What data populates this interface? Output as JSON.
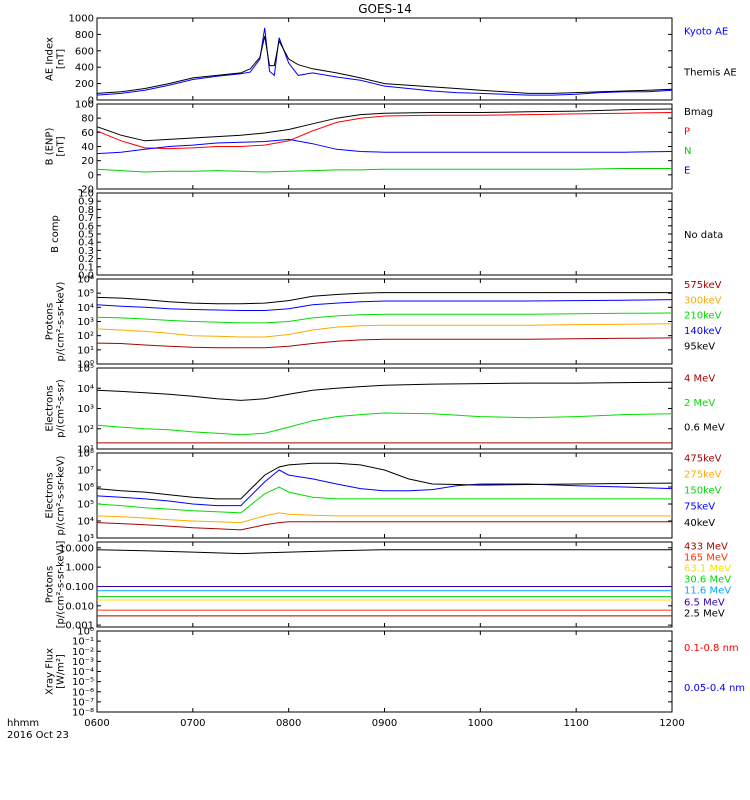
{
  "title": "GOES-14",
  "time_axis": {
    "ticks": [
      "0600",
      "0700",
      "0800",
      "0900",
      "1000",
      "1100",
      "1200"
    ],
    "label": "hhmm",
    "date": "2016 Oct 23"
  },
  "chart_data": [
    {
      "id": "ae",
      "type": "line",
      "ylabel": "AE Index\n[nT]",
      "scale": "linear",
      "ylim": [
        0,
        1000
      ],
      "yticks": [
        0,
        200,
        400,
        600,
        800,
        1000
      ],
      "ytick_labels": [
        "0",
        "200",
        "400",
        "600",
        "800",
        "1000"
      ],
      "x": [
        6.0,
        6.25,
        6.5,
        6.75,
        7.0,
        7.25,
        7.5,
        7.6,
        7.7,
        7.75,
        7.8,
        7.85,
        7.9,
        8.0,
        8.1,
        8.25,
        8.5,
        8.75,
        9.0,
        9.25,
        9.5,
        9.75,
        10.0,
        10.25,
        10.5,
        10.75,
        11.0,
        11.25,
        11.5,
        11.75,
        12.0
      ],
      "series": [
        {
          "name": "Kyoto AE",
          "color": "#0000ff",
          "label_pos": 0.15,
          "values": [
            60,
            80,
            120,
            180,
            250,
            290,
            320,
            340,
            500,
            880,
            350,
            300,
            760,
            450,
            300,
            330,
            280,
            240,
            170,
            140,
            110,
            90,
            80,
            70,
            60,
            60,
            70,
            90,
            100,
            100,
            120
          ]
        },
        {
          "name": "Themis AE",
          "color": "#000000",
          "label_pos": 0.65,
          "values": [
            80,
            100,
            140,
            200,
            270,
            300,
            330,
            380,
            520,
            780,
            420,
            420,
            720,
            500,
            430,
            380,
            330,
            270,
            200,
            180,
            160,
            140,
            120,
            100,
            80,
            80,
            90,
            100,
            110,
            120,
            130
          ]
        }
      ]
    },
    {
      "id": "b_enp",
      "type": "line",
      "ylabel": "B (ENP)\n[nT]",
      "scale": "linear",
      "ylim": [
        -20,
        100
      ],
      "yticks": [
        -20,
        0,
        20,
        40,
        60,
        80,
        100
      ],
      "ytick_labels": [
        "-20",
        "0",
        "20",
        "40",
        "60",
        "80",
        "100"
      ],
      "x": [
        6.0,
        6.25,
        6.5,
        6.75,
        7.0,
        7.25,
        7.5,
        7.75,
        8.0,
        8.25,
        8.5,
        8.75,
        9.0,
        9.5,
        10.0,
        10.5,
        11.0,
        11.5,
        12.0
      ],
      "series": [
        {
          "name": "Bmag",
          "color": "#000000",
          "label_pos": 0.08,
          "values": [
            68,
            56,
            48,
            50,
            52,
            54,
            56,
            59,
            64,
            72,
            80,
            85,
            87,
            88,
            88,
            89,
            90,
            92,
            93
          ]
        },
        {
          "name": "P",
          "color": "#ff0000",
          "label_pos": 0.31,
          "values": [
            62,
            48,
            38,
            37,
            38,
            40,
            40,
            42,
            48,
            62,
            74,
            80,
            83,
            84,
            84,
            85,
            86,
            87,
            88
          ]
        },
        {
          "name": "N",
          "color": "#00d000",
          "label_pos": 0.54,
          "values": [
            8,
            6,
            4,
            5,
            5,
            6,
            5,
            4,
            5,
            6,
            7,
            7,
            8,
            8,
            8,
            8,
            8,
            9,
            9
          ]
        },
        {
          "name": "E",
          "color": "#0000ff",
          "label_pos": 0.77,
          "values": [
            30,
            32,
            36,
            40,
            42,
            45,
            46,
            47,
            50,
            44,
            36,
            33,
            32,
            32,
            32,
            32,
            32,
            32,
            33
          ]
        }
      ]
    },
    {
      "id": "bcomp",
      "type": "line",
      "ylabel": "B comp",
      "scale": "linear",
      "ylim": [
        0,
        1
      ],
      "yticks": [
        0,
        0.1,
        0.2,
        0.3,
        0.4,
        0.5,
        0.6,
        0.7,
        0.8,
        0.9,
        1.0
      ],
      "ytick_labels": [
        "0.0",
        "0.1",
        "0.2",
        "0.3",
        "0.4",
        "0.5",
        "0.6",
        "0.7",
        "0.8",
        "0.9",
        "1.0"
      ],
      "x": [],
      "series": [],
      "note": "No data",
      "note_color": "#000000"
    },
    {
      "id": "protons_low",
      "type": "line",
      "ylabel": "Protons\np/(cm²-s-sr-keV)",
      "scale": "log",
      "ylim": [
        1,
        1000000
      ],
      "yticks": [
        1,
        10,
        100,
        1000,
        10000,
        100000,
        1000000
      ],
      "ytick_labels": [
        "10⁰",
        "10¹",
        "10²",
        "10³",
        "10⁴",
        "10⁵",
        "10⁶"
      ],
      "x": [
        6.0,
        6.25,
        6.5,
        6.75,
        7.0,
        7.25,
        7.5,
        7.75,
        8.0,
        8.25,
        8.5,
        8.75,
        9.0,
        9.5,
        10.0,
        10.5,
        11.0,
        11.5,
        12.0
      ],
      "series": [
        {
          "name": "575keV",
          "color": "#aa0000",
          "label_pos": 0.06,
          "values": [
            30,
            28,
            22,
            18,
            15,
            14,
            14,
            14,
            18,
            28,
            40,
            50,
            55,
            55,
            55,
            55,
            60,
            65,
            70
          ]
        },
        {
          "name": "300keV",
          "color": "#ffaa00",
          "label_pos": 0.24,
          "values": [
            300,
            250,
            200,
            150,
            100,
            90,
            80,
            80,
            120,
            250,
            400,
            500,
            550,
            550,
            550,
            550,
            600,
            650,
            700
          ]
        },
        {
          "name": "210keV",
          "color": "#00dd00",
          "label_pos": 0.42,
          "values": [
            2000,
            1800,
            1500,
            1200,
            1000,
            900,
            800,
            800,
            1000,
            1800,
            2500,
            3000,
            3200,
            3200,
            3200,
            3200,
            3500,
            3800,
            4000
          ]
        },
        {
          "name": "140keV",
          "color": "#0000ff",
          "label_pos": 0.6,
          "values": [
            15000,
            12000,
            10000,
            8000,
            7000,
            6500,
            6000,
            6000,
            8000,
            15000,
            20000,
            25000,
            28000,
            28000,
            28000,
            28000,
            30000,
            32000,
            35000
          ]
        },
        {
          "name": "95keV",
          "color": "#000000",
          "label_pos": 0.78,
          "values": [
            50000,
            45000,
            35000,
            25000,
            20000,
            18000,
            18000,
            20000,
            30000,
            60000,
            80000,
            100000,
            110000,
            110000,
            110000,
            110000,
            110000,
            110000,
            110000
          ]
        }
      ]
    },
    {
      "id": "electrons_mev",
      "type": "line",
      "ylabel": "Electrons\np/(cm²-s-sr)",
      "scale": "log",
      "ylim": [
        10,
        100000
      ],
      "yticks": [
        10,
        100,
        1000,
        10000,
        100000
      ],
      "ytick_labels": [
        "10¹",
        "10²",
        "10³",
        "10⁴",
        "10⁵"
      ],
      "x": [
        6.0,
        6.25,
        6.5,
        6.75,
        7.0,
        7.25,
        7.5,
        7.75,
        8.0,
        8.25,
        8.5,
        8.75,
        9.0,
        9.5,
        10.0,
        10.5,
        11.0,
        11.5,
        12.0
      ],
      "series": [
        {
          "name": "4 MeV",
          "color": "#aa0000",
          "label_pos": 0.12,
          "values": [
            20,
            20,
            20,
            20,
            20,
            20,
            20,
            20,
            20,
            20,
            20,
            20,
            20,
            20,
            20,
            20,
            20,
            20,
            20
          ]
        },
        {
          "name": "2 MeV",
          "color": "#00dd00",
          "label_pos": 0.42,
          "values": [
            150,
            120,
            100,
            90,
            70,
            60,
            50,
            60,
            120,
            250,
            400,
            500,
            600,
            550,
            400,
            350,
            400,
            500,
            550
          ]
        },
        {
          "name": "0.6 MeV",
          "color": "#000000",
          "label_pos": 0.72,
          "values": [
            8000,
            7000,
            6000,
            5000,
            4000,
            3000,
            2500,
            3000,
            5000,
            8000,
            10000,
            12000,
            14000,
            16000,
            17000,
            18000,
            18000,
            19000,
            20000
          ]
        }
      ]
    },
    {
      "id": "electrons_kev",
      "type": "line",
      "ylabel": "Electrons\np/(cm²-s-sr-keV)",
      "scale": "log",
      "ylim": [
        1000,
        100000000
      ],
      "yticks": [
        1000,
        10000,
        100000,
        1000000,
        10000000,
        100000000
      ],
      "ytick_labels": [
        "10³",
        "10⁴",
        "10⁵",
        "10⁶",
        "10⁷",
        "10⁸"
      ],
      "x": [
        6.0,
        6.25,
        6.5,
        6.75,
        7.0,
        7.25,
        7.5,
        7.75,
        7.9,
        8.0,
        8.25,
        8.5,
        8.75,
        9.0,
        9.25,
        9.5,
        9.75,
        10.0,
        10.5,
        11.0,
        11.5,
        12.0
      ],
      "series": [
        {
          "name": "475keV",
          "color": "#aa0000",
          "label_pos": 0.05,
          "values": [
            8000,
            7000,
            6000,
            5000,
            4000,
            3500,
            3000,
            6000,
            8000,
            9000,
            9000,
            9000,
            9000,
            9000,
            9000,
            9000,
            9000,
            9000,
            9000,
            9000,
            9000,
            9000
          ]
        },
        {
          "name": "275keV",
          "color": "#ffaa00",
          "label_pos": 0.24,
          "values": [
            20000,
            18000,
            15000,
            12000,
            10000,
            9000,
            8000,
            20000,
            30000,
            25000,
            22000,
            20000,
            20000,
            20000,
            20000,
            20000,
            20000,
            20000,
            20000,
            20000,
            20000,
            20000
          ]
        },
        {
          "name": "150keV",
          "color": "#00dd00",
          "label_pos": 0.43,
          "values": [
            100000,
            80000,
            60000,
            50000,
            40000,
            35000,
            30000,
            400000,
            1000000,
            500000,
            250000,
            200000,
            200000,
            200000,
            200000,
            200000,
            200000,
            200000,
            200000,
            200000,
            200000,
            200000
          ]
        },
        {
          "name": "75keV",
          "color": "#0000ff",
          "label_pos": 0.62,
          "values": [
            300000,
            250000,
            200000,
            150000,
            100000,
            80000,
            80000,
            2000000,
            10000000,
            5000000,
            3000000,
            1500000,
            800000,
            600000,
            600000,
            700000,
            1200000,
            1500000,
            1500000,
            1200000,
            1000000,
            800000
          ]
        },
        {
          "name": "40keV",
          "color": "#000000",
          "label_pos": 0.81,
          "values": [
            800000,
            600000,
            500000,
            350000,
            250000,
            200000,
            200000,
            5000000,
            15000000,
            20000000,
            25000000,
            25000000,
            20000000,
            10000000,
            3000000,
            1500000,
            1400000,
            1300000,
            1400000,
            1500000,
            1600000,
            1700000
          ]
        }
      ]
    },
    {
      "id": "protons_high",
      "type": "line",
      "ylabel": "Protons\n[p/(cm²-s-sr-keV)]",
      "scale": "log",
      "ylim": [
        0.0008,
        20
      ],
      "yticks": [
        0.001,
        0.01,
        0.1,
        1,
        10
      ],
      "ytick_labels": [
        "0.001",
        "0.010",
        "0.100",
        "1.000",
        "10.000"
      ],
      "x": [
        6.0,
        6.5,
        7.0,
        7.5,
        8.0,
        8.5,
        9.0,
        9.5,
        10.0,
        10.5,
        11.0,
        11.5,
        12.0
      ],
      "series": [
        {
          "name": "433 MeV",
          "color": "#aa0000",
          "label_pos": 0.04,
          "values": [
            0.003,
            0.003,
            0.003,
            0.003,
            0.003,
            0.003,
            0.003,
            0.003,
            0.003,
            0.003,
            0.003,
            0.003,
            0.003
          ]
        },
        {
          "name": "165 MeV",
          "color": "#ff3300",
          "label_pos": 0.17,
          "values": [
            0.006,
            0.006,
            0.006,
            0.006,
            0.006,
            0.006,
            0.006,
            0.006,
            0.006,
            0.006,
            0.006,
            0.006,
            0.006
          ]
        },
        {
          "name": "63.1 MeV",
          "color": "#ffdd00",
          "label_pos": 0.3,
          "values": [
            0.02,
            0.02,
            0.02,
            0.02,
            0.02,
            0.02,
            0.02,
            0.02,
            0.02,
            0.02,
            0.02,
            0.02,
            0.02
          ]
        },
        {
          "name": "30.6 MeV",
          "color": "#00dd00",
          "label_pos": 0.43,
          "values": [
            0.03,
            0.03,
            0.03,
            0.03,
            0.03,
            0.03,
            0.03,
            0.03,
            0.03,
            0.03,
            0.03,
            0.03,
            0.03
          ]
        },
        {
          "name": "11.6 MeV",
          "color": "#00aaff",
          "label_pos": 0.56,
          "values": [
            0.06,
            0.06,
            0.06,
            0.06,
            0.06,
            0.06,
            0.06,
            0.06,
            0.06,
            0.06,
            0.06,
            0.06,
            0.06
          ]
        },
        {
          "name": "6.5 MeV",
          "color": "#3300aa",
          "label_pos": 0.7,
          "values": [
            0.1,
            0.1,
            0.1,
            0.1,
            0.1,
            0.1,
            0.1,
            0.1,
            0.1,
            0.1,
            0.1,
            0.1,
            0.1
          ]
        },
        {
          "name": "2.5 MeV",
          "color": "#000000",
          "label_pos": 0.83,
          "values": [
            8,
            7,
            6,
            5,
            6,
            7,
            8,
            8,
            8,
            8,
            8,
            8,
            8
          ]
        }
      ]
    },
    {
      "id": "xray",
      "type": "line",
      "ylabel": "Xray Flux\n[W/m²]",
      "scale": "log",
      "ylim": [
        1e-08,
        1
      ],
      "yticks": [
        1e-08,
        1e-07,
        1e-06,
        1e-05,
        0.0001,
        0.001,
        0.01,
        0.1,
        1
      ],
      "ytick_labels": [
        "10⁻⁸",
        "10⁻⁷",
        "10⁻⁶",
        "10⁻⁵",
        "10⁻⁴",
        "10⁻³",
        "10⁻²",
        "10⁻¹",
        "10⁰"
      ],
      "x": [],
      "series": [
        {
          "name": "0.1-0.8 nm",
          "color": "#ff0000",
          "label_pos": 0.2,
          "values": []
        },
        {
          "name": "0.05-0.4 nm",
          "color": "#0000ff",
          "label_pos": 0.69,
          "values": []
        }
      ]
    }
  ]
}
